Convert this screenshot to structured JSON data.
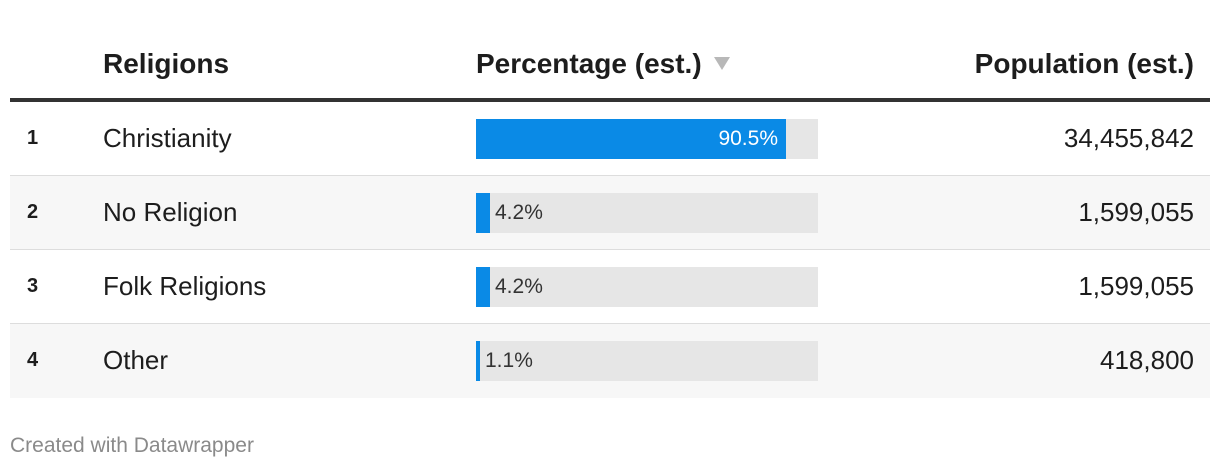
{
  "table": {
    "headers": {
      "religion": "Religions",
      "percentage": "Percentage (est.)",
      "population": "Population (est.)"
    },
    "sort_column": "percentage",
    "sort_direction": "descending",
    "rows": [
      {
        "rank": "1",
        "religion": "Christianity",
        "percentage_label": "90.5%",
        "percentage_value": 90.5,
        "population": "34,455,842"
      },
      {
        "rank": "2",
        "religion": "No Religion",
        "percentage_label": "4.2%",
        "percentage_value": 4.2,
        "population": "1,599,055"
      },
      {
        "rank": "3",
        "religion": "Folk Religions",
        "percentage_label": "4.2%",
        "percentage_value": 4.2,
        "population": "1,599,055"
      },
      {
        "rank": "4",
        "religion": "Other",
        "percentage_label": "1.1%",
        "percentage_value": 1.1,
        "population": "418,800"
      }
    ]
  },
  "chart_data": {
    "type": "table",
    "columns": [
      "Religions",
      "Percentage (est.)",
      "Population (est.)"
    ],
    "categories": [
      "Christianity",
      "No Religion",
      "Folk Religions",
      "Other"
    ],
    "series": [
      {
        "name": "Percentage (est.)",
        "values": [
          90.5,
          4.2,
          4.2,
          1.1
        ]
      },
      {
        "name": "Population (est.)",
        "values": [
          34455842,
          1599055,
          1599055,
          418800
        ]
      }
    ],
    "bar_color": "#0a8ae6",
    "bar_track_color": "#e6e6e6"
  },
  "footer": {
    "credit": "Created with Datawrapper"
  }
}
